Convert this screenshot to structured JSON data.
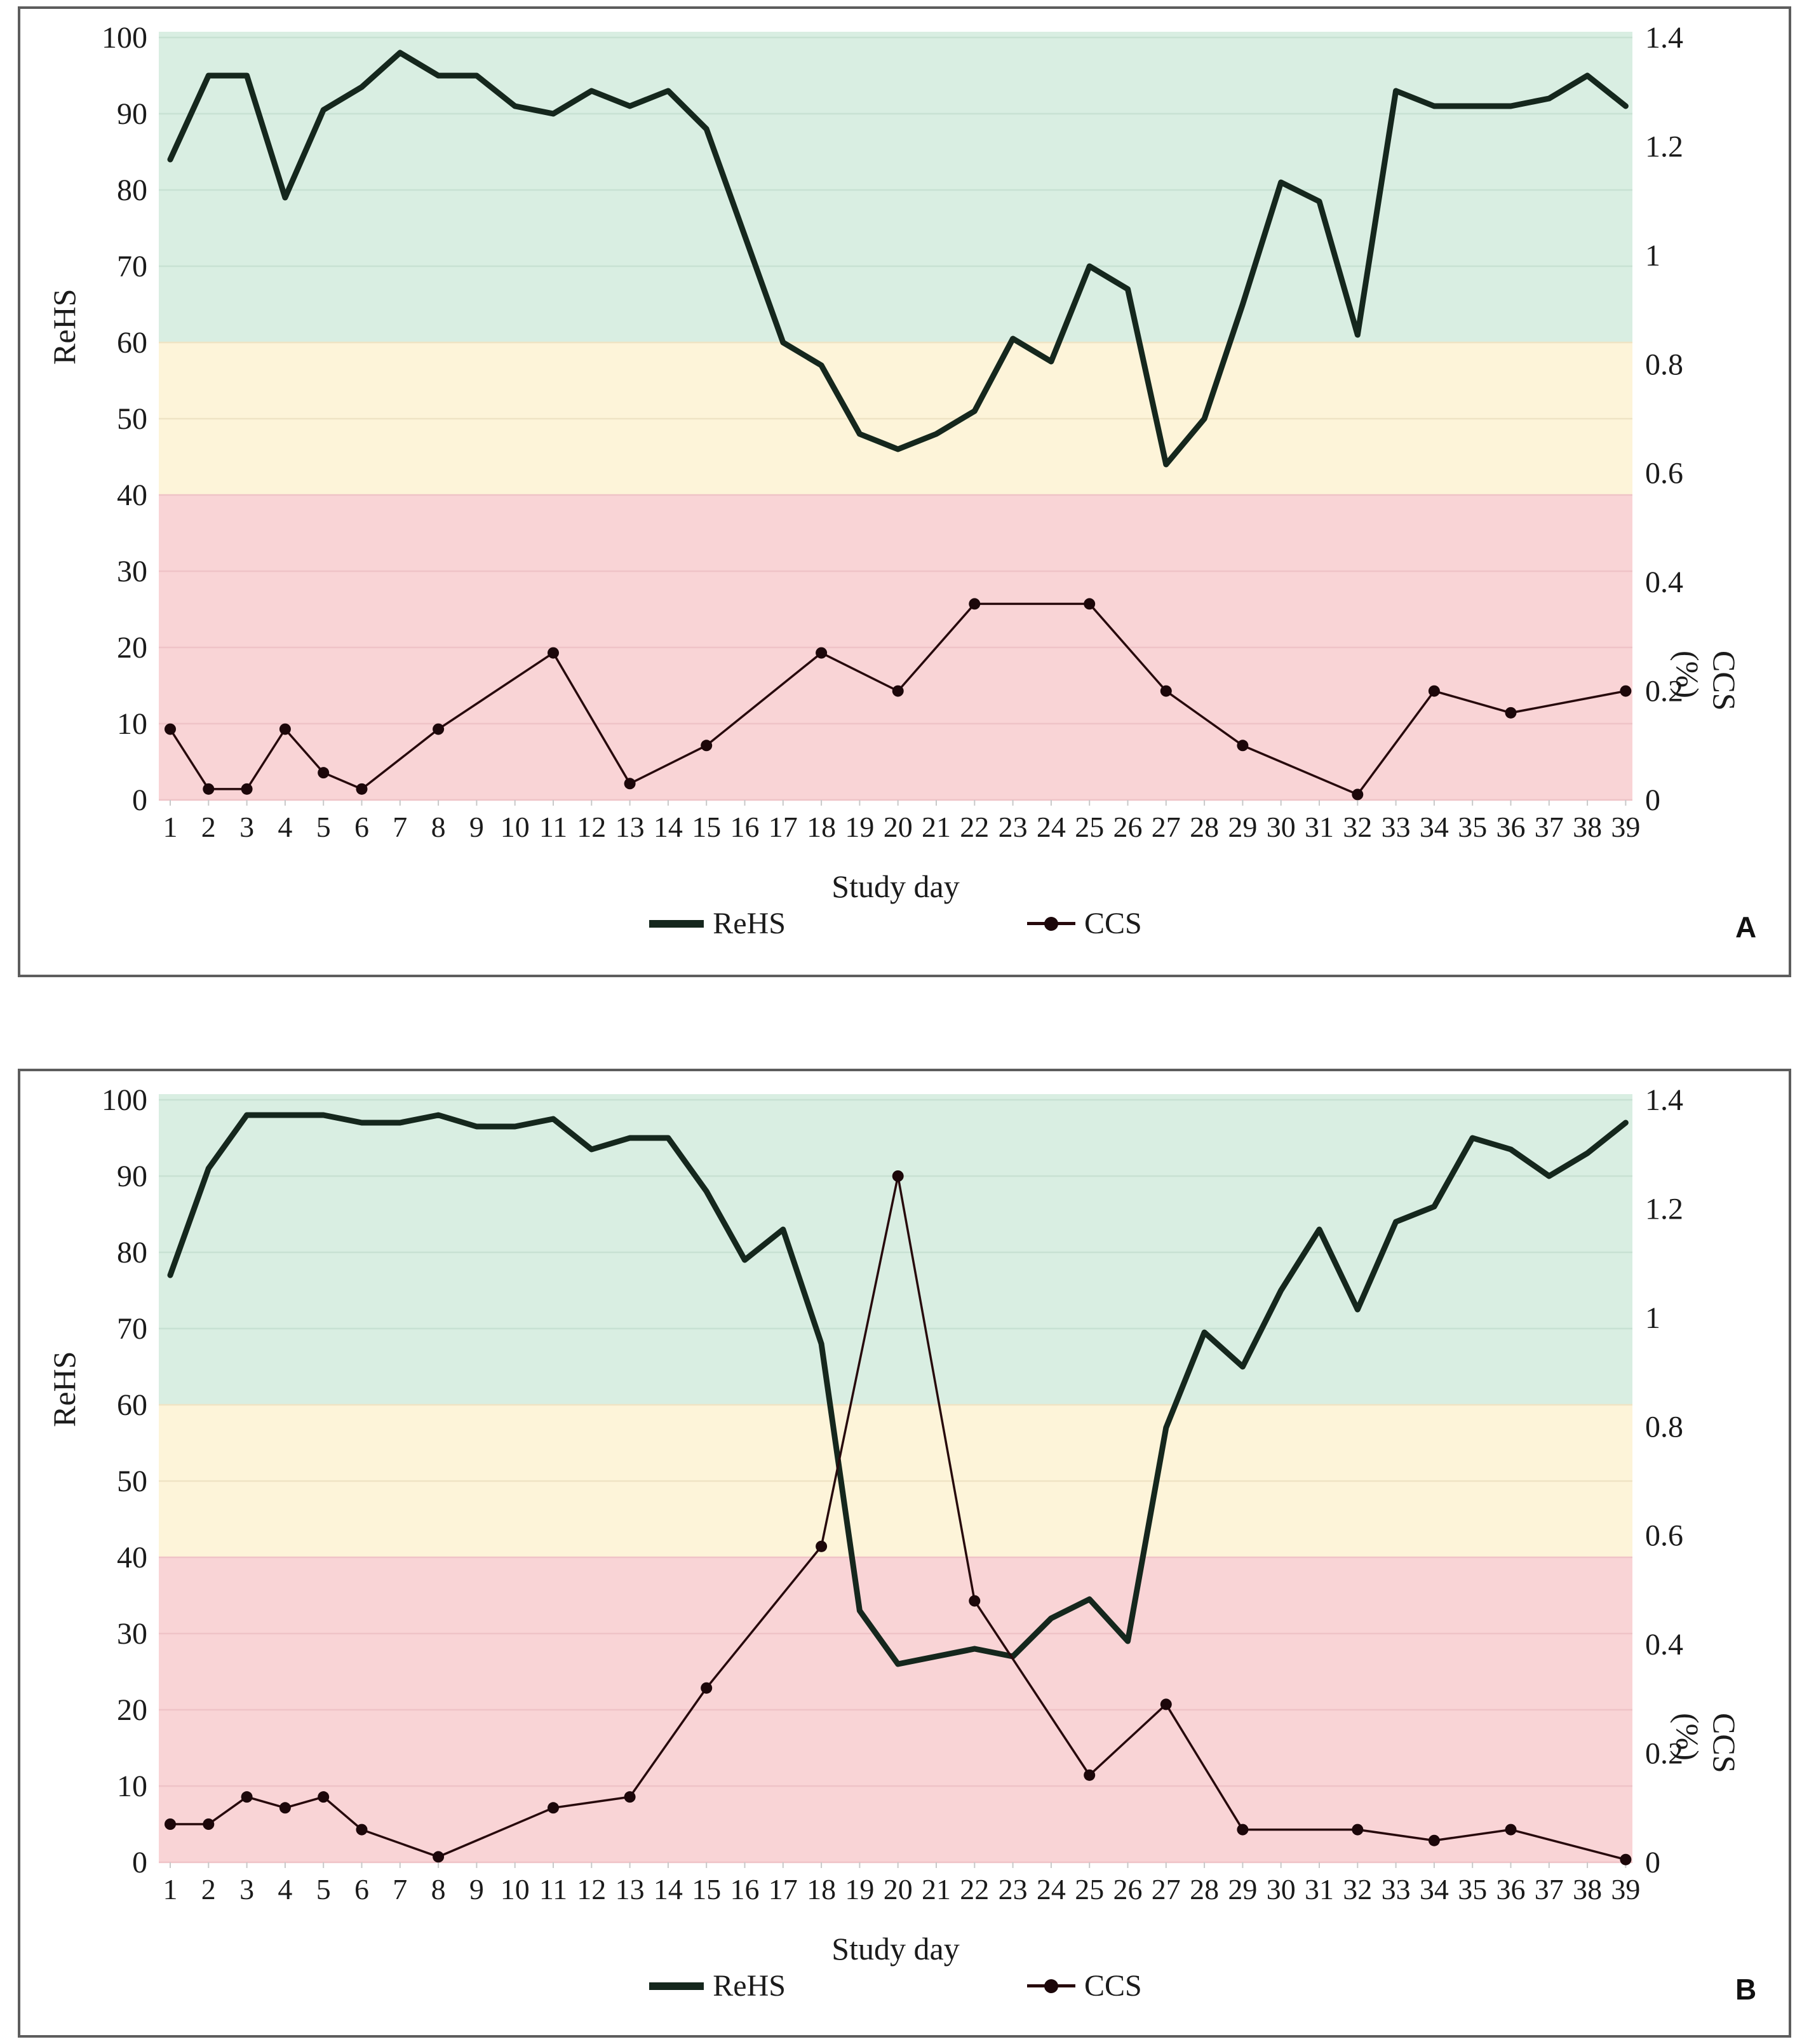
{
  "figure": {
    "xlabel": "Study day",
    "ylabel_left": "ReHS",
    "ylabel_right": "CCS (%)",
    "legend": [
      {
        "label": "ReHS",
        "swatch": "thick-line"
      },
      {
        "label": "CCS",
        "swatch": "dot-line"
      }
    ],
    "colors": {
      "rehs_line": "#15271d",
      "ccs_line": "#27090c",
      "ccs_marker": "#1c070a",
      "text": "#1b1b1b",
      "tick": "#c9c9c9",
      "band_green": "#d9eee2",
      "band_yellow": "#fdf4d9",
      "band_pink": "#f9d4d6",
      "grid_green": "#c8e1d3",
      "grid_yellow": "#efe3c4",
      "grid_pink": "#efc3c7"
    }
  },
  "chart_data": [
    {
      "type": "line",
      "panel_label": "A",
      "xlabel": "Study day",
      "ylabel_left": "ReHS",
      "ylabel_right": "CCS (%)",
      "x_categories": [
        1,
        2,
        3,
        4,
        5,
        6,
        7,
        8,
        9,
        10,
        11,
        12,
        13,
        14,
        15,
        16,
        17,
        18,
        19,
        20,
        21,
        22,
        23,
        24,
        25,
        26,
        27,
        28,
        29,
        30,
        31,
        32,
        33,
        34,
        35,
        36,
        37,
        38,
        39
      ],
      "left_axis": {
        "min": 0,
        "max": 100,
        "tick_step": 10
      },
      "right_axis": {
        "min": 0,
        "max": 1.4,
        "tick_labels": [
          "0",
          "0.2",
          "0.4",
          "0.6",
          "0.8",
          "1",
          "1.2",
          "1.4"
        ]
      },
      "bands": [
        {
          "name": "green-zone",
          "from": 60,
          "to": 100
        },
        {
          "name": "yellow-zone",
          "from": 40,
          "to": 60
        },
        {
          "name": "pink-zone",
          "from": 0,
          "to": 40
        }
      ],
      "legend": [
        {
          "label": "ReHS"
        },
        {
          "label": "CCS"
        }
      ],
      "series": [
        {
          "name": "ReHS",
          "axis": "left",
          "values": [
            84,
            95,
            95,
            79,
            90.5,
            93.5,
            98,
            95,
            95,
            91,
            90,
            93,
            91,
            93,
            88,
            74,
            60,
            57,
            48,
            46,
            48,
            51,
            60.5,
            57.5,
            70,
            67,
            44,
            50,
            65,
            81,
            78.5,
            61,
            93,
            91,
            91,
            91,
            92,
            95,
            91
          ]
        },
        {
          "name": "CCS",
          "axis": "right",
          "points": [
            {
              "day": 1,
              "value": 0.13
            },
            {
              "day": 2,
              "value": 0.02
            },
            {
              "day": 3,
              "value": 0.02
            },
            {
              "day": 4,
              "value": 0.13
            },
            {
              "day": 5,
              "value": 0.05
            },
            {
              "day": 6,
              "value": 0.02
            },
            {
              "day": 8,
              "value": 0.13
            },
            {
              "day": 11,
              "value": 0.27
            },
            {
              "day": 13,
              "value": 0.03
            },
            {
              "day": 15,
              "value": 0.1
            },
            {
              "day": 18,
              "value": 0.27
            },
            {
              "day": 20,
              "value": 0.2
            },
            {
              "day": 22,
              "value": 0.36
            },
            {
              "day": 25,
              "value": 0.36
            },
            {
              "day": 27,
              "value": 0.2
            },
            {
              "day": 29,
              "value": 0.1
            },
            {
              "day": 32,
              "value": 0.01
            },
            {
              "day": 34,
              "value": 0.2
            },
            {
              "day": 36,
              "value": 0.16
            },
            {
              "day": 39,
              "value": 0.2
            }
          ]
        }
      ]
    },
    {
      "type": "line",
      "panel_label": "B",
      "xlabel": "Study day",
      "ylabel_left": "ReHS",
      "ylabel_right": "CCS (%)",
      "x_categories": [
        1,
        2,
        3,
        4,
        5,
        6,
        7,
        8,
        9,
        10,
        11,
        12,
        13,
        14,
        15,
        16,
        17,
        18,
        19,
        20,
        21,
        22,
        23,
        24,
        25,
        26,
        27,
        28,
        29,
        30,
        31,
        32,
        33,
        34,
        35,
        36,
        37,
        38,
        39
      ],
      "left_axis": {
        "min": 0,
        "max": 100,
        "tick_step": 10
      },
      "right_axis": {
        "min": 0,
        "max": 1.4,
        "tick_labels": [
          "0",
          "0.2",
          "0.4",
          "0.6",
          "0.8",
          "1",
          "1.2",
          "1.4"
        ]
      },
      "bands": [
        {
          "name": "green-zone",
          "from": 60,
          "to": 100
        },
        {
          "name": "yellow-zone",
          "from": 40,
          "to": 60
        },
        {
          "name": "pink-zone",
          "from": 0,
          "to": 40
        }
      ],
      "legend": [
        {
          "label": "ReHS"
        },
        {
          "label": "CCS"
        }
      ],
      "series": [
        {
          "name": "ReHS",
          "axis": "left",
          "values": [
            77,
            91,
            98,
            98,
            98,
            97,
            97,
            98,
            96.5,
            96.5,
            97.5,
            93.5,
            95,
            95,
            88,
            79,
            83,
            68,
            33,
            26,
            27,
            28,
            27,
            32,
            34.5,
            29,
            57,
            69.5,
            65,
            75,
            83,
            72.5,
            84,
            86,
            95,
            93.5,
            90,
            93,
            97
          ]
        },
        {
          "name": "CCS",
          "axis": "right",
          "points": [
            {
              "day": 1,
              "value": 0.07
            },
            {
              "day": 2,
              "value": 0.07
            },
            {
              "day": 3,
              "value": 0.12
            },
            {
              "day": 4,
              "value": 0.1
            },
            {
              "day": 5,
              "value": 0.12
            },
            {
              "day": 6,
              "value": 0.06
            },
            {
              "day": 8,
              "value": 0.01
            },
            {
              "day": 11,
              "value": 0.1
            },
            {
              "day": 13,
              "value": 0.12
            },
            {
              "day": 15,
              "value": 0.32
            },
            {
              "day": 18,
              "value": 0.58
            },
            {
              "day": 20,
              "value": 1.26
            },
            {
              "day": 22,
              "value": 0.48
            },
            {
              "day": 25,
              "value": 0.16
            },
            {
              "day": 27,
              "value": 0.29
            },
            {
              "day": 29,
              "value": 0.06
            },
            {
              "day": 32,
              "value": 0.06
            },
            {
              "day": 34,
              "value": 0.04
            },
            {
              "day": 36,
              "value": 0.06
            },
            {
              "day": 39,
              "value": 0.005
            }
          ]
        }
      ]
    }
  ]
}
